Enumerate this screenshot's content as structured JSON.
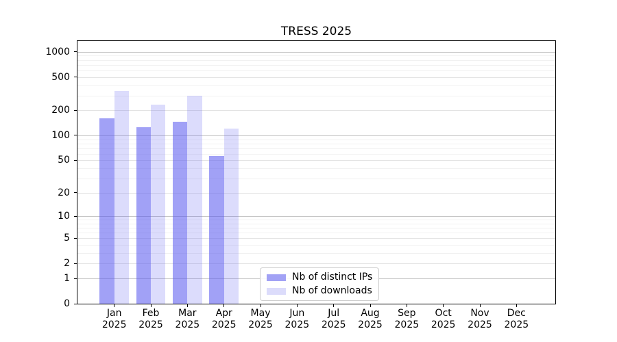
{
  "chart_data": {
    "type": "bar",
    "title": "TRESS 2025",
    "categories": [
      "Jan 2025",
      "Feb 2025",
      "Mar 2025",
      "Apr 2025",
      "May 2025",
      "Jun 2025",
      "Jul 2025",
      "Aug 2025",
      "Sep 2025",
      "Oct 2025",
      "Nov 2025",
      "Dec 2025"
    ],
    "series": [
      {
        "name": "Nb of distinct IPs",
        "values": [
          160,
          125,
          145,
          56,
          null,
          null,
          null,
          null,
          null,
          null,
          null,
          null
        ],
        "fill": "rgba(88,88,239,0.56)",
        "legend_color": "#a2a2f5"
      },
      {
        "name": "Nb of downloads",
        "values": [
          340,
          235,
          300,
          120,
          null,
          null,
          null,
          null,
          null,
          null,
          null,
          null
        ],
        "fill": "rgba(88,88,239,0.21)",
        "legend_color": "#dcdcfb"
      }
    ],
    "yscale": "log1p",
    "y_ticks": [
      0,
      1,
      2,
      5,
      10,
      20,
      50,
      100,
      200,
      500,
      1000
    ],
    "ylim": [
      0,
      1350
    ],
    "xlabel": "",
    "ylabel": "",
    "grid": true,
    "legend_position": "lower center",
    "colors": {
      "spine": "#000000",
      "grid_major": "#c6c6c6",
      "grid_mid": "#e3e3e3",
      "grid_minor": "#f1f1f1",
      "text": "#000000"
    }
  }
}
